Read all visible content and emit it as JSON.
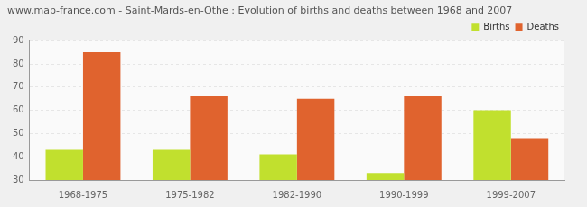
{
  "chart_data": {
    "type": "bar",
    "title": "www.map-france.com - Saint-Mards-en-Othe : Evolution of births and deaths between 1968 and 2007",
    "categories": [
      "1968-1975",
      "1975-1982",
      "1982-1990",
      "1990-1999",
      "1999-2007"
    ],
    "series": [
      {
        "name": "Births",
        "color": "#c1e02e",
        "values": [
          43,
          43,
          41,
          33,
          60
        ]
      },
      {
        "name": "Deaths",
        "color": "#e0632e",
        "values": [
          85,
          66,
          65,
          66,
          48
        ]
      }
    ],
    "ylim": [
      30,
      90
    ],
    "yticks": [
      30,
      40,
      50,
      60,
      70,
      80,
      90
    ],
    "grid": true,
    "legend": "top-right"
  }
}
